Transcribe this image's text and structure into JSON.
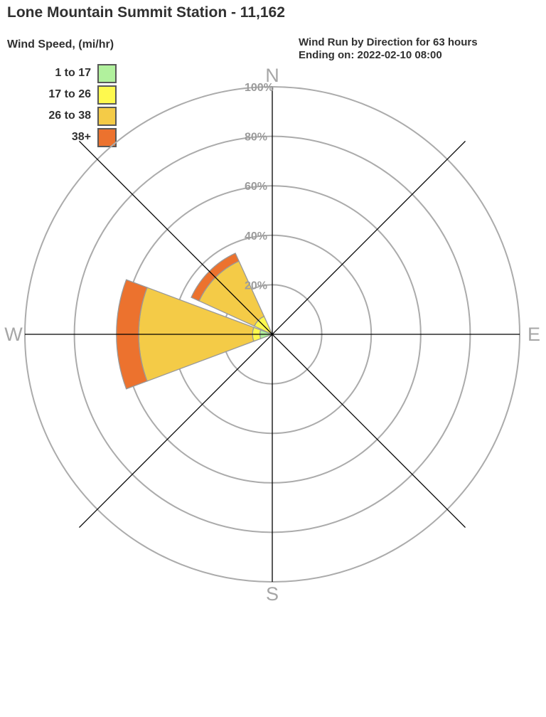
{
  "page_title": "Lone Mountain Summit Station - 11,162",
  "legend": {
    "title": "Wind Speed, (mi/hr)",
    "items": [
      {
        "label": "1 to 17",
        "color": "#B1F19D"
      },
      {
        "label": "17 to 26",
        "color": "#FEF94E"
      },
      {
        "label": "26 to 38",
        "color": "#F4CB47"
      },
      {
        "label": "38+",
        "color": "#EC722E"
      }
    ]
  },
  "subtitle": {
    "line1": "Wind Run by Direction for 63 hours",
    "line2": "Ending on: 2022-02-10 08:00"
  },
  "chart_data": {
    "type": "windrose-polar-stacked-bar",
    "title": "Wind Run by Direction for 63 hours Ending on: 2022-02-10 08:00",
    "units": "percent of wind run",
    "directions": [
      "N",
      "NE",
      "E",
      "SE",
      "S",
      "SW",
      "W",
      "NW"
    ],
    "series": [
      {
        "name": "1 to 17",
        "color": "#B1F19D",
        "values": [
          0,
          0,
          0,
          0,
          0,
          0,
          5,
          0
        ]
      },
      {
        "name": "17 to 26",
        "color": "#FEF94E",
        "values": [
          0,
          0,
          0,
          0,
          0,
          0,
          3,
          8
        ]
      },
      {
        "name": "26 to 38",
        "color": "#F4CB47",
        "values": [
          0,
          0,
          0,
          0,
          0,
          0,
          46,
          24.5
        ]
      },
      {
        "name": "38+",
        "color": "#EC722E",
        "values": [
          0,
          0,
          0,
          0,
          0,
          0,
          9,
          3.5
        ]
      }
    ],
    "direction_totals": {
      "N": 0,
      "NE": 0,
      "E": 0,
      "SE": 0,
      "S": 0,
      "SW": 0,
      "W": 63,
      "NW": 36
    },
    "radial_axis": {
      "ticks": [
        "20%",
        "40%",
        "60%",
        "80%",
        "100%"
      ],
      "max": 100,
      "grid": true
    },
    "compass_labels": [
      "N",
      "E",
      "S",
      "W"
    ],
    "sector_width_deg": 41,
    "legend_position": "top-left",
    "colors": {
      "grid": "#ABABAB",
      "axis": "#000000",
      "tick_label": "#9C9C9C",
      "compass_label": "#A6A6A6",
      "wedge_stroke": "#999999",
      "text": "#303030"
    }
  }
}
